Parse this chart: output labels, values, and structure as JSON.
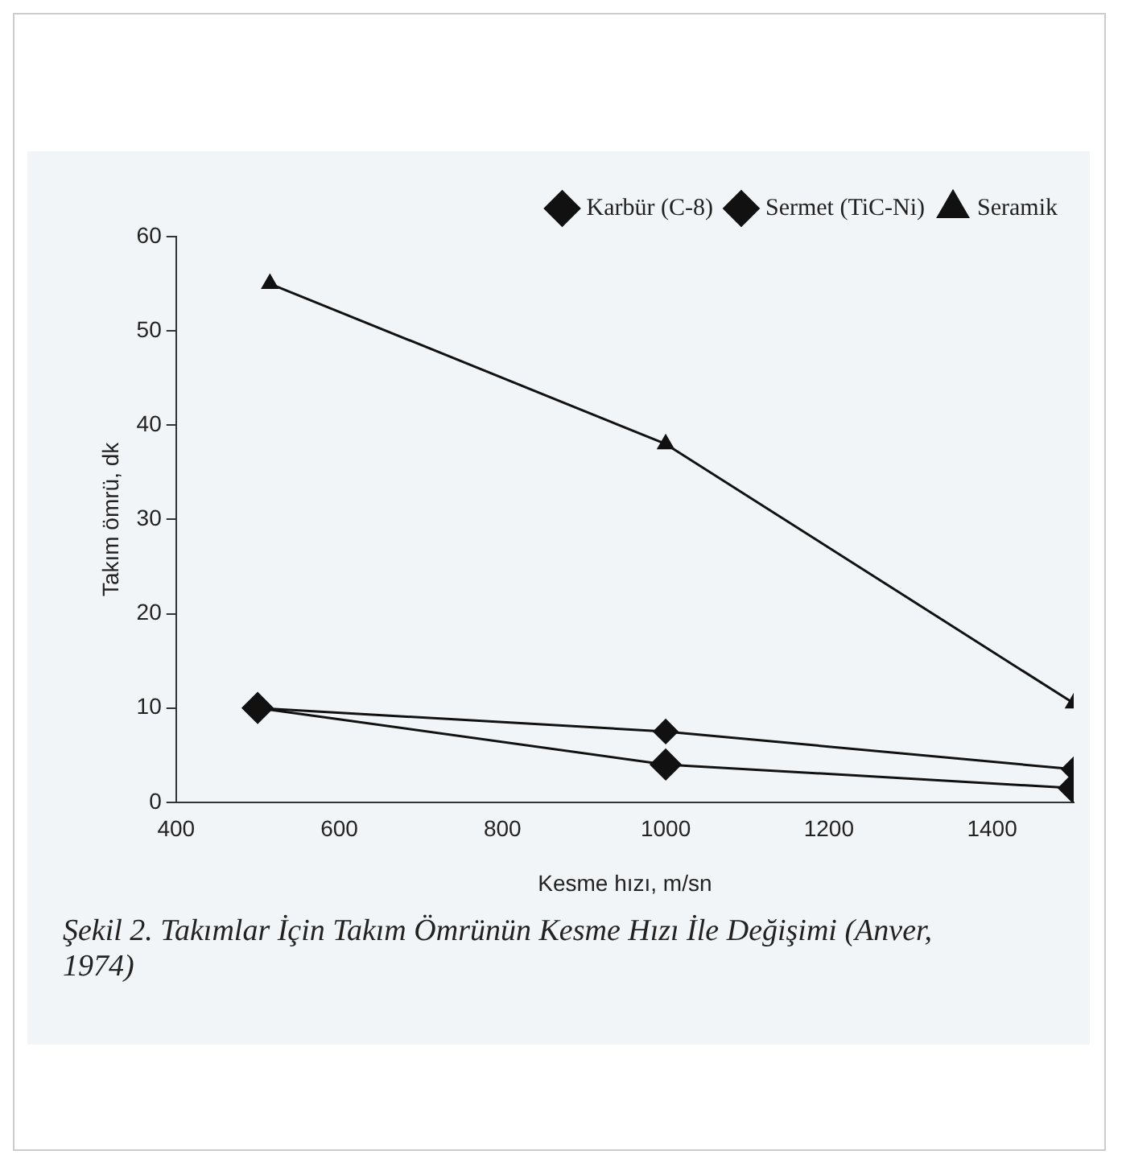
{
  "chart_data": {
    "type": "line",
    "xlabel": "Kesme hızı, m/sn",
    "ylabel": "Takım ömrü, dk",
    "xlim": [
      400,
      1500
    ],
    "xticks": [
      400,
      600,
      800,
      1000,
      1200,
      1400
    ],
    "ylim": [
      0,
      60
    ],
    "yticks": [
      0,
      10,
      20,
      30,
      40,
      50,
      60
    ],
    "grid": false,
    "legend": "top right",
    "line_style": "solid",
    "series": [
      {
        "name": "Karbür (C-8)",
        "color": "#111111",
        "marker": "diamond",
        "x": [
          500,
          1000,
          1500
        ],
        "values": [
          10,
          4,
          1.5
        ]
      },
      {
        "name": "Sermet (TiC-Ni)",
        "color": "#111111",
        "marker": "diamond",
        "x": [
          500,
          1000,
          1500
        ],
        "values": [
          10,
          7.5,
          3.5
        ]
      },
      {
        "name": "Seramik",
        "color": "#111111",
        "marker": "triangle",
        "x": [
          515,
          1000,
          1500
        ],
        "values": [
          55,
          38,
          10.5
        ]
      }
    ],
    "annotations": [
      "Şekil 2. Takımlar İçin Takım Ömrünün Kesme Hızı İle Değişimi (Anver, 1974)"
    ]
  }
}
